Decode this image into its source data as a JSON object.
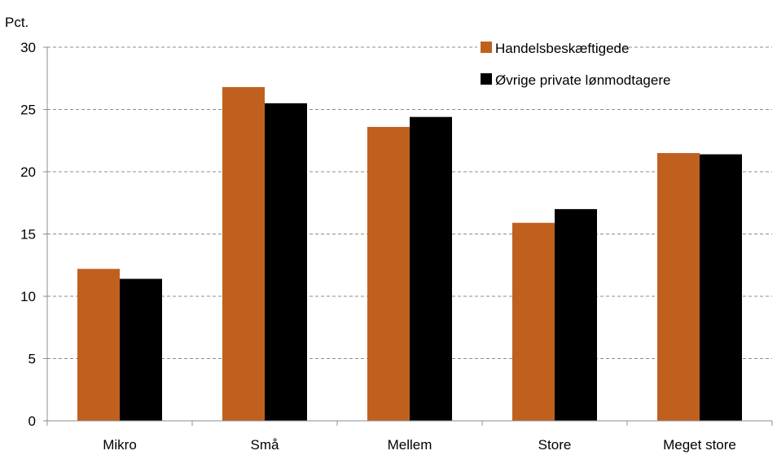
{
  "chart_data": {
    "type": "bar",
    "unit_label": "Pct.",
    "categories": [
      "Mikro",
      "Små",
      "Mellem",
      "Store",
      "Meget store"
    ],
    "series": [
      {
        "name": "Handelsbeskæftigede",
        "color": "#C0601F",
        "values": [
          12.2,
          26.8,
          23.6,
          15.9,
          21.5
        ]
      },
      {
        "name": "Øvrige private lønmodtagere",
        "color": "#000000",
        "values": [
          11.4,
          25.5,
          24.4,
          17.0,
          21.4
        ]
      }
    ],
    "ylim": [
      0,
      30
    ],
    "yticks": [
      0,
      5,
      10,
      15,
      20,
      25,
      30
    ],
    "grid": true,
    "grid_style": "dashed",
    "legend_position": "top-right"
  }
}
